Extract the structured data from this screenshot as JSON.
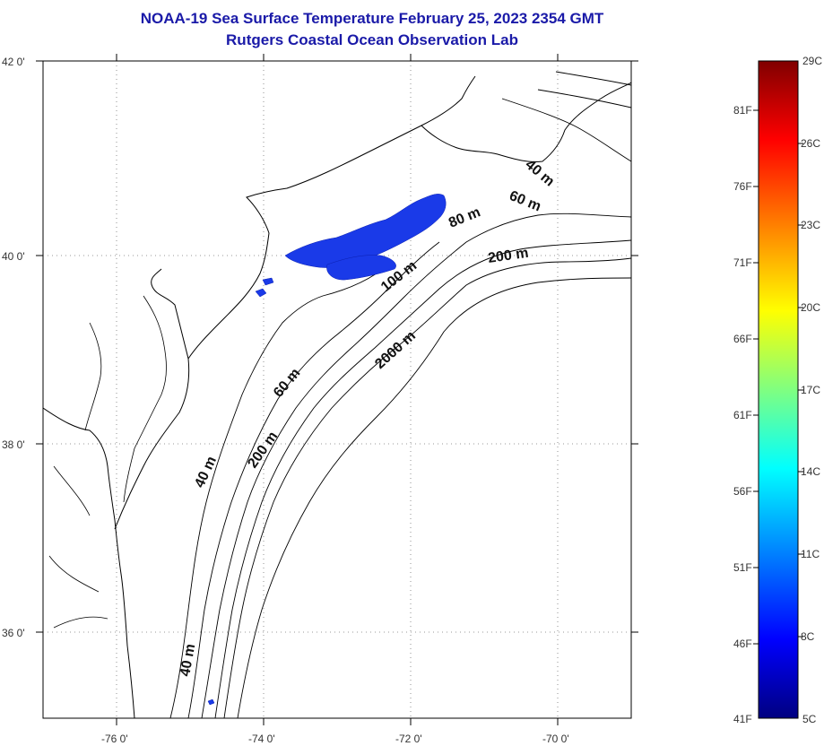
{
  "title": {
    "line1": "NOAA-19 Sea Surface Temperature February 25, 2023 2354 GMT",
    "line2": "Rutgers Coastal Ocean Observation Lab"
  },
  "map": {
    "lat_range": [
      35,
      42
    ],
    "lon_range": [
      -77,
      -69
    ],
    "lat_ticks": [
      {
        "value": 42,
        "label": "42 0'"
      },
      {
        "value": 40,
        "label": "40 0'"
      },
      {
        "value": 38,
        "label": "38 0'"
      },
      {
        "value": 36,
        "label": "36 0'"
      }
    ],
    "lon_ticks": [
      {
        "value": -76,
        "label": "-76 0'"
      },
      {
        "value": -74,
        "label": "-74 0'"
      },
      {
        "value": -72,
        "label": "-72 0'"
      },
      {
        "value": -70,
        "label": "-70 0'"
      }
    ],
    "contour_labels": [
      "40 m",
      "60 m",
      "80 m",
      "200 m",
      "100 m",
      "2000 m",
      "60 m",
      "200 m",
      "40 m",
      "40 m"
    ],
    "sst_patch_color": "#1a3ae8"
  },
  "colorbar": {
    "celsius": [
      "29C",
      "26C",
      "23C",
      "20C",
      "17C",
      "14C",
      "11C",
      "8C",
      "5C"
    ],
    "fahrenheit": [
      "81F",
      "76F",
      "71F",
      "66F",
      "61F",
      "56F",
      "51F",
      "46F",
      "41F"
    ],
    "colors_top_to_bottom": [
      "#800000",
      "#ff0000",
      "#ff8000",
      "#ffff00",
      "#80ff80",
      "#00ffff",
      "#0080ff",
      "#0000ff",
      "#000080"
    ]
  }
}
